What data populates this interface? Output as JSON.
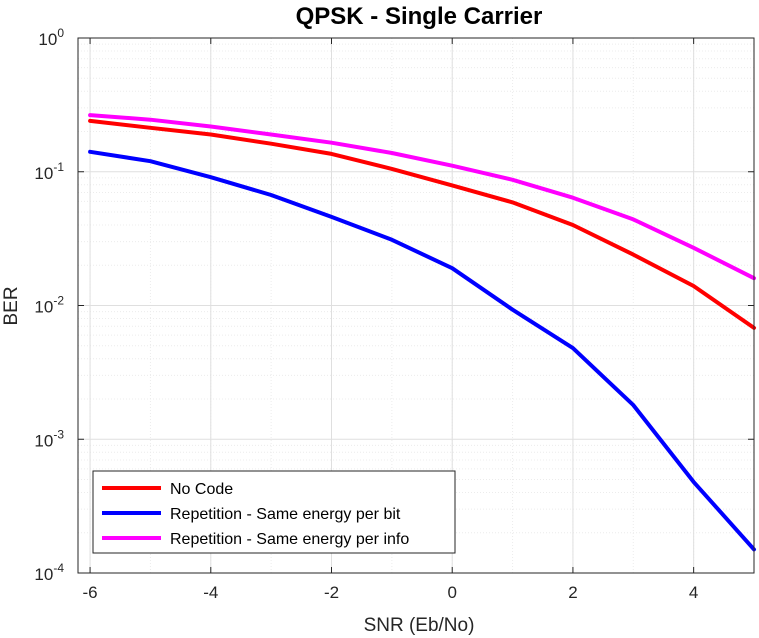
{
  "chart_data": {
    "type": "line",
    "title": "QPSK - Single Carrier",
    "xlabel": "SNR (Eb/No)",
    "ylabel": "BER",
    "xlim": [
      -6.2,
      5.0
    ],
    "ylim": [
      0.0001,
      1
    ],
    "yscale": "log",
    "grid": true,
    "legend_position": "bottom-left",
    "x_ticks": [
      -6,
      -4,
      -2,
      0,
      2,
      4
    ],
    "x_tick_labels": [
      "-6",
      "-4",
      "-2",
      "0",
      "2",
      "4"
    ],
    "y_ticks": [
      {
        "value": 1,
        "base": "10",
        "exp": "0"
      },
      {
        "value": 0.1,
        "base": "10",
        "exp": "-1"
      },
      {
        "value": 0.01,
        "base": "10",
        "exp": "-2"
      },
      {
        "value": 0.001,
        "base": "10",
        "exp": "-3"
      },
      {
        "value": 0.0001,
        "base": "10",
        "exp": "-4"
      }
    ],
    "x": [
      -6,
      -5,
      -4,
      -3,
      -2,
      -1,
      0,
      1,
      2,
      3,
      4,
      5
    ],
    "series": [
      {
        "name": "No Code",
        "color": "#ff0000",
        "values": [
          0.24,
          0.213,
          0.19,
          0.162,
          0.136,
          0.105,
          0.079,
          0.059,
          0.04,
          0.024,
          0.014,
          0.0068
        ]
      },
      {
        "name": "Repetition - Same energy per bit",
        "color": "#0000ff",
        "values": [
          0.141,
          0.12,
          0.091,
          0.067,
          0.046,
          0.031,
          0.019,
          0.0093,
          0.0048,
          0.0018,
          0.00048,
          0.00015
        ]
      },
      {
        "name": "Repetition - Same energy per info",
        "color": "#ff00ff",
        "values": [
          0.265,
          0.245,
          0.218,
          0.19,
          0.165,
          0.138,
          0.111,
          0.087,
          0.064,
          0.044,
          0.027,
          0.016
        ]
      }
    ]
  }
}
